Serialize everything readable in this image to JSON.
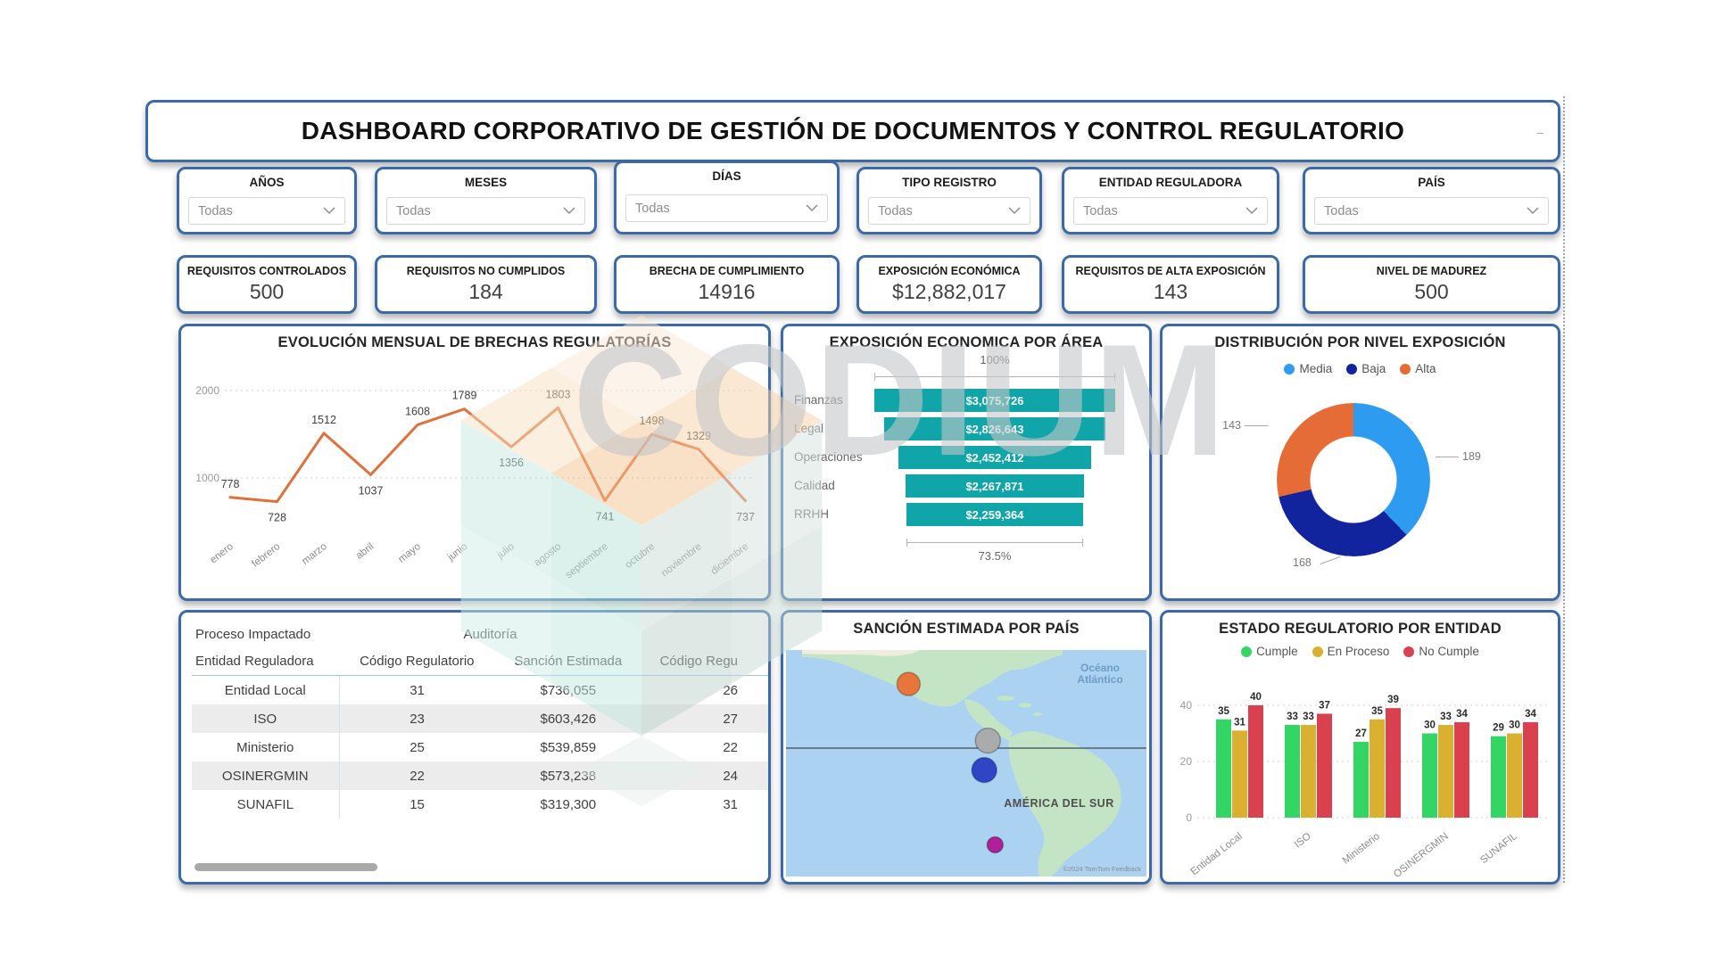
{
  "page": {
    "title": "DASHBOARD CORPORATIVO DE GESTIÓN DE DOCUMENTOS Y CONTROL REGULATORIO",
    "resize_dash": "–",
    "accent_color": "#3A6BA8",
    "watermark_text": "CODIUM"
  },
  "filters": [
    {
      "label": "AÑOS",
      "value": "Todas"
    },
    {
      "label": "MESES",
      "value": "Todas"
    },
    {
      "label": "DÍAS",
      "value": "Todas"
    },
    {
      "label": "TIPO REGISTRO",
      "value": "Todas"
    },
    {
      "label": "ENTIDAD REGULADORA",
      "value": "Todas"
    },
    {
      "label": "PAÍS",
      "value": "Todas"
    }
  ],
  "kpis": [
    {
      "label": "REQUISITOS CONTROLADOS",
      "value": "500"
    },
    {
      "label": "REQUISITOS NO CUMPLIDOS",
      "value": "184"
    },
    {
      "label": "BRECHA DE CUMPLIMIENTO",
      "value": "14916"
    },
    {
      "label": "EXPOSICIÓN ECONÓMICA",
      "value": "$12,882,017"
    },
    {
      "label": "REQUISITOS DE ALTA EXPOSICIÓN",
      "value": "143"
    },
    {
      "label": "NIVEL DE MADUREZ",
      "value": "500"
    }
  ],
  "chart_data": [
    {
      "type": "line",
      "title": "EVOLUCIÓN MENSUAL DE BRECHAS REGULATORÍAS",
      "categories": [
        "enero",
        "febrero",
        "marzo",
        "abril",
        "mayo",
        "junio",
        "julio",
        "agosto",
        "septiembre",
        "octubre",
        "noviembre",
        "diciembre"
      ],
      "values": [
        778,
        728,
        1512,
        1037,
        1608,
        1789,
        1356,
        1803,
        741,
        1498,
        1329,
        737
      ],
      "yticks": [
        "1000",
        "2000"
      ],
      "ytick_values": [
        1000,
        2000
      ],
      "ylim": [
        550,
        2150
      ],
      "line_color": "#E0713C",
      "grid": true
    },
    {
      "type": "funnel",
      "title": "EXPOSICIÓN ECONOMICA POR ÁREA",
      "categories": [
        "Finanzas",
        "Legal",
        "Operaciones",
        "Calidad",
        "RRHH"
      ],
      "values": [
        3075726,
        2826643,
        2452412,
        2267871,
        2259364
      ],
      "value_labels": [
        "$3,075,726",
        "$2,826,643",
        "$2,452,412",
        "$2,267,871",
        "$2,259,364"
      ],
      "top_label": "100%",
      "bottom_label": "73.5%",
      "bar_color": "#10A5A8"
    },
    {
      "type": "donut",
      "title": "DISTRIBUCIÓN POR NIVEL EXPOSICIÓN",
      "series": [
        {
          "name": "Media",
          "value": 189,
          "color": "#2D9BF0"
        },
        {
          "name": "Baja",
          "value": 168,
          "color": "#12239E"
        },
        {
          "name": "Alta",
          "value": 143,
          "color": "#E66C37"
        }
      ],
      "legend_position": "top"
    },
    {
      "type": "bar",
      "title": "ESTADO REGULATORIO POR ENTIDAD",
      "categories": [
        "Entidad Local",
        "ISO",
        "Ministerio",
        "OSINERGMIN",
        "SUNAFIL"
      ],
      "series": [
        {
          "name": "Cumple",
          "color": "#33D664",
          "values": [
            35,
            33,
            27,
            30,
            29
          ]
        },
        {
          "name": "En Proceso",
          "color": "#D9B02F",
          "values": [
            31,
            33,
            35,
            33,
            30
          ]
        },
        {
          "name": "No Cumple",
          "color": "#D9414E",
          "values": [
            40,
            37,
            39,
            34,
            34
          ]
        }
      ],
      "yticks": [
        0,
        20,
        40
      ],
      "ylim": [
        0,
        45
      ],
      "grid": true,
      "legend_position": "top"
    }
  ],
  "table": {
    "group_headers": [
      "Proceso Impactado",
      "Auditoría"
    ],
    "columns": [
      "Entidad Reguladora",
      "Código Regulatorio",
      "Sanción Estimada",
      "Código Regu"
    ],
    "rows": [
      [
        "Entidad Local",
        "31",
        "$736,055",
        "26"
      ],
      [
        "ISO",
        "23",
        "$603,426",
        "27"
      ],
      [
        "Ministerio",
        "25",
        "$539,859",
        "22"
      ],
      [
        "OSINERGMIN",
        "22",
        "$573,238",
        "24"
      ],
      [
        "SUNAFIL",
        "15",
        "$319,300",
        "31"
      ]
    ]
  },
  "map": {
    "title": "SANCIÓN ESTIMADA POR PAÍS",
    "ocean_label": "Océano Atlántico",
    "region_label": "AMÉRICA DEL SUR",
    "attribution": "©2024 TomTom Feedback",
    "sea_color": "#ABD3F1",
    "land_color": "#C3E5C5",
    "bubbles": [
      {
        "color": "#E8763C",
        "x": 34,
        "y": 15,
        "r": 13
      },
      {
        "color": "#ABABAB",
        "x": 56,
        "y": 40,
        "r": 14
      },
      {
        "color": "#2F45C5",
        "x": 55,
        "y": 53,
        "r": 14
      },
      {
        "color": "#B0209B",
        "x": 58,
        "y": 86,
        "r": 9
      }
    ]
  }
}
